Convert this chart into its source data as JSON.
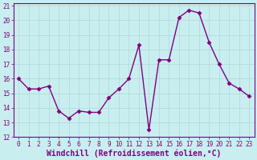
{
  "x": [
    0,
    1,
    2,
    3,
    4,
    5,
    6,
    7,
    8,
    9,
    10,
    11,
    12,
    13,
    14,
    15,
    16,
    17,
    18,
    19,
    20,
    21,
    22,
    23
  ],
  "y": [
    16.0,
    15.3,
    15.3,
    15.5,
    13.8,
    13.3,
    13.8,
    13.7,
    13.7,
    14.7,
    15.3,
    16.0,
    18.3,
    12.5,
    17.3,
    17.3,
    20.2,
    20.7,
    20.5,
    18.5,
    17.0,
    15.7,
    15.3,
    14.8
  ],
  "line_color": "#800080",
  "marker_color": "#800080",
  "bg_color": "#c8eef0",
  "grid_color": "#b0d8d8",
  "xlabel": "Windchill (Refroidissement éolien,°C)",
  "ylim": [
    12,
    21
  ],
  "xlim": [
    -0.5,
    23.5
  ],
  "yticks": [
    12,
    13,
    14,
    15,
    16,
    17,
    18,
    19,
    20,
    21
  ],
  "xticks": [
    0,
    1,
    2,
    3,
    4,
    5,
    6,
    7,
    8,
    9,
    10,
    11,
    12,
    13,
    14,
    15,
    16,
    17,
    18,
    19,
    20,
    21,
    22,
    23
  ],
  "tick_color": "#800080",
  "tick_labelsize": 5.5,
  "xlabel_fontsize": 7,
  "line_width": 1.0,
  "marker_size": 2.5
}
